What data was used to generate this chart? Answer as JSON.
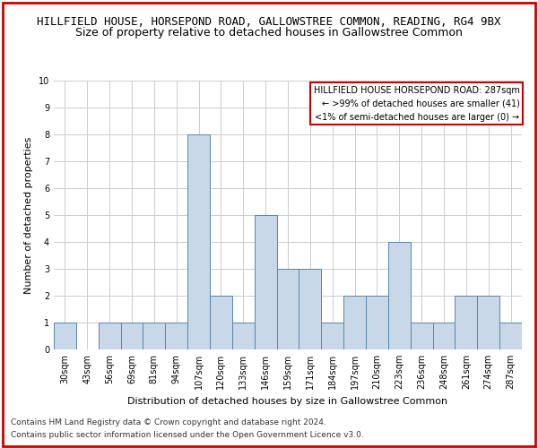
{
  "title_line1": "HILLFIELD HOUSE, HORSEPOND ROAD, GALLOWSTREE COMMON, READING, RG4 9BX",
  "title_line2": "Size of property relative to detached houses in Gallowstree Common",
  "xlabel": "Distribution of detached houses by size in Gallowstree Common",
  "ylabel": "Number of detached properties",
  "categories": [
    "30sqm",
    "43sqm",
    "56sqm",
    "69sqm",
    "81sqm",
    "94sqm",
    "107sqm",
    "120sqm",
    "133sqm",
    "146sqm",
    "159sqm",
    "171sqm",
    "184sqm",
    "197sqm",
    "210sqm",
    "223sqm",
    "236sqm",
    "248sqm",
    "261sqm",
    "274sqm",
    "287sqm"
  ],
  "values": [
    1,
    0,
    1,
    1,
    1,
    1,
    8,
    2,
    1,
    5,
    3,
    3,
    1,
    2,
    2,
    4,
    1,
    1,
    2,
    2,
    1
  ],
  "bar_color": "#c8d8e8",
  "bar_edge_color": "#5588aa",
  "ylim": [
    0,
    10
  ],
  "yticks": [
    0,
    1,
    2,
    3,
    4,
    5,
    6,
    7,
    8,
    9,
    10
  ],
  "annotation_text": "HILLFIELD HOUSE HORSEPOND ROAD: 287sqm\n← >99% of detached houses are smaller (41)\n<1% of semi-detached houses are larger (0) →",
  "annotation_box_color": "#ffffff",
  "annotation_box_edge_color": "#cc0000",
  "footer_line1": "Contains HM Land Registry data © Crown copyright and database right 2024.",
  "footer_line2": "Contains public sector information licensed under the Open Government Licence v3.0.",
  "bg_color": "#ffffff",
  "grid_color": "#cccccc",
  "title1_fontsize": 9,
  "title2_fontsize": 9,
  "axis_label_fontsize": 8,
  "tick_fontsize": 7,
  "annotation_fontsize": 7,
  "footer_fontsize": 6.5
}
